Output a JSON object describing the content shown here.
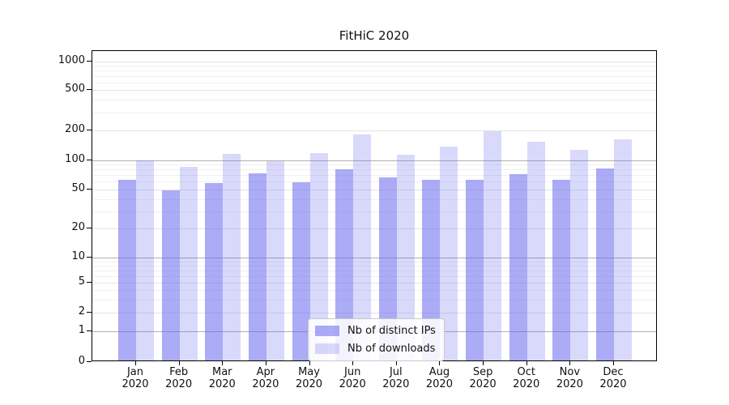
{
  "chart_data": {
    "type": "bar",
    "title": "FitHiC 2020",
    "categories": [
      {
        "month": "Jan",
        "year": "2020"
      },
      {
        "month": "Feb",
        "year": "2020"
      },
      {
        "month": "Mar",
        "year": "2020"
      },
      {
        "month": "Apr",
        "year": "2020"
      },
      {
        "month": "May",
        "year": "2020"
      },
      {
        "month": "Jun",
        "year": "2020"
      },
      {
        "month": "Jul",
        "year": "2020"
      },
      {
        "month": "Aug",
        "year": "2020"
      },
      {
        "month": "Sep",
        "year": "2020"
      },
      {
        "month": "Oct",
        "year": "2020"
      },
      {
        "month": "Nov",
        "year": "2020"
      },
      {
        "month": "Dec",
        "year": "2020"
      }
    ],
    "series": [
      {
        "name": "Nb of distinct IPs",
        "color": "#6666ee",
        "opacity": 0.55,
        "values": [
          61,
          48,
          57,
          71,
          58,
          78,
          65,
          61,
          61,
          70,
          61,
          79
        ]
      },
      {
        "name": "Nb of downloads",
        "color": "#6666ee",
        "opacity": 0.25,
        "values": [
          96,
          82,
          113,
          95,
          115,
          177,
          111,
          134,
          189,
          150,
          124,
          159
        ]
      }
    ],
    "y_axis": {
      "scale": "symlog",
      "ticks": [
        0,
        1,
        2,
        5,
        10,
        20,
        50,
        100,
        200,
        500,
        1000
      ],
      "minor_gridlines": [
        3,
        4,
        6,
        7,
        8,
        9,
        30,
        40,
        60,
        70,
        80,
        90,
        300,
        400,
        600,
        700,
        800,
        900
      ],
      "emphasized_gridlines": [
        1,
        10,
        100
      ],
      "gridline_color": "#e4e4e4",
      "minor_gridline_color": "#f0f0f0",
      "emphasized_gridline_color": "#b0b0b0"
    },
    "legend": {
      "position": "lower center",
      "entries": [
        "Nb of distinct IPs",
        "Nb of downloads"
      ]
    }
  }
}
